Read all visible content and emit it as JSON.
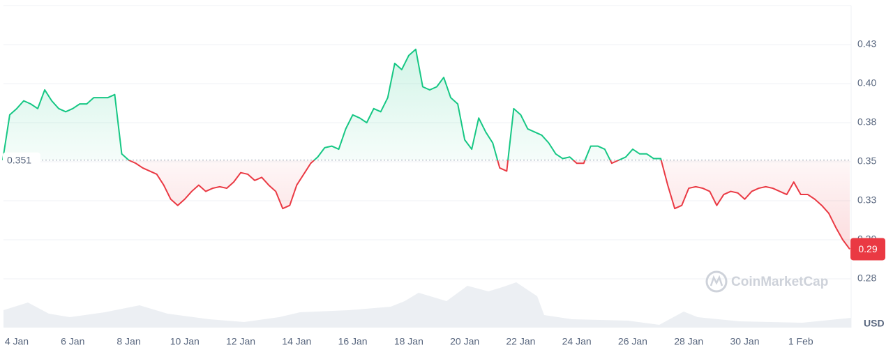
{
  "chart_data": {
    "type": "area",
    "categories": [
      null,
      null,
      "4 Jan",
      null,
      null,
      null,
      null,
      null,
      null,
      null,
      "6 Jan",
      null,
      null,
      null,
      null,
      null,
      null,
      null,
      "8 Jan",
      null,
      null,
      null,
      null,
      null,
      null,
      null,
      "10 Jan",
      null,
      null,
      null,
      null,
      null,
      null,
      null,
      "12 Jan",
      null,
      null,
      null,
      null,
      null,
      null,
      null,
      "14 Jan",
      null,
      null,
      null,
      null,
      null,
      null,
      null,
      "16 Jan",
      null,
      null,
      null,
      null,
      null,
      null,
      null,
      "18 Jan",
      null,
      null,
      null,
      null,
      null,
      null,
      null,
      "20 Jan",
      null,
      null,
      null,
      null,
      null,
      null,
      null,
      "22 Jan",
      null,
      null,
      null,
      null,
      null,
      null,
      null,
      "24 Jan",
      null,
      null,
      null,
      null,
      null,
      null,
      null,
      "26 Jan",
      null,
      null,
      null,
      null,
      null,
      null,
      null,
      "28 Jan",
      null,
      null,
      null,
      null,
      null,
      null,
      null,
      "30 Jan",
      null,
      null,
      null,
      null,
      null,
      null,
      null,
      "1 Feb",
      null,
      null,
      null,
      null,
      null,
      null,
      null
    ],
    "values": [
      0.351,
      0.38,
      0.384,
      0.389,
      0.387,
      0.384,
      0.396,
      0.389,
      0.384,
      0.382,
      0.384,
      0.387,
      0.387,
      0.391,
      0.391,
      0.391,
      0.393,
      0.355,
      0.351,
      0.349,
      0.346,
      0.344,
      0.342,
      0.335,
      0.326,
      0.322,
      0.326,
      0.331,
      0.335,
      0.331,
      0.333,
      0.334,
      0.333,
      0.337,
      0.343,
      0.342,
      0.338,
      0.34,
      0.335,
      0.331,
      0.32,
      0.322,
      0.335,
      0.342,
      0.349,
      0.353,
      0.359,
      0.36,
      0.358,
      0.371,
      0.38,
      0.378,
      0.375,
      0.384,
      0.382,
      0.391,
      0.413,
      0.409,
      0.418,
      0.422,
      0.398,
      0.396,
      0.398,
      0.404,
      0.391,
      0.387,
      0.364,
      0.358,
      0.378,
      0.369,
      0.362,
      0.346,
      0.344,
      0.384,
      0.38,
      0.371,
      0.369,
      0.367,
      0.362,
      0.355,
      0.352,
      0.353,
      0.349,
      0.349,
      0.36,
      0.36,
      0.358,
      0.349,
      0.351,
      0.353,
      0.358,
      0.355,
      0.355,
      0.352,
      0.352,
      0.335,
      0.32,
      0.322,
      0.333,
      0.334,
      0.333,
      0.331,
      0.322,
      0.329,
      0.331,
      0.33,
      0.326,
      0.331,
      0.333,
      0.334,
      0.333,
      0.331,
      0.329,
      0.337,
      0.329,
      0.329,
      0.326,
      0.322,
      0.317,
      0.308,
      0.3,
      0.294
    ],
    "up_color": "#16c784",
    "down_color": "#ea3943",
    "baseline": 0.351,
    "last_price_label": "0.29",
    "ylim": [
      0.24375,
      0.45
    ],
    "yticks": [
      {
        "value": 0.275,
        "label": "0.28"
      },
      {
        "value": 0.3,
        "label": "0.30"
      },
      {
        "value": 0.325,
        "label": "0.33"
      },
      {
        "value": 0.35,
        "label": "0.35"
      },
      {
        "value": 0.375,
        "label": "0.38"
      },
      {
        "value": 0.4,
        "label": "0.40"
      },
      {
        "value": 0.425,
        "label": "0.43"
      }
    ],
    "grid": true,
    "currency": "USD",
    "watermark": "CoinMarketCap"
  }
}
